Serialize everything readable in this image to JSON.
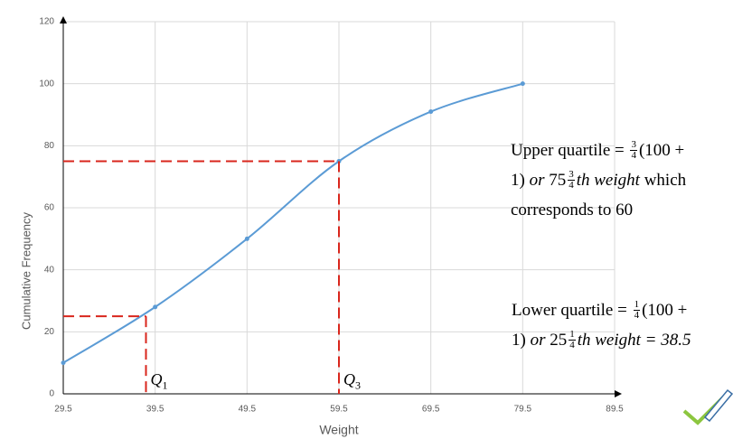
{
  "chart_data": {
    "type": "line",
    "x_label": "Weight",
    "y_label": "Cumulative Frequency",
    "x": [
      29.5,
      39.5,
      49.5,
      59.5,
      69.5,
      79.5
    ],
    "series": [
      {
        "color": "#5b9bd5",
        "values": [
          10,
          28,
          50,
          75,
          91,
          100
        ]
      }
    ],
    "xlim": [
      29.5,
      89.5
    ],
    "xticks": [
      29.5,
      39.5,
      49.5,
      59.5,
      69.5,
      79.5,
      89.5
    ],
    "ylim": [
      0,
      120
    ],
    "yticks": [
      0,
      20,
      40,
      60,
      80,
      100,
      120
    ],
    "grid": true,
    "reference_lines": [
      {
        "x": 59.5,
        "y": 75,
        "color": "#d9261c"
      },
      {
        "x": 38.5,
        "y": 25,
        "color": "#d9261c"
      }
    ],
    "markers": [
      {
        "text": "Q",
        "sub": "3",
        "x": 59.5
      },
      {
        "text": "Q",
        "sub": "1",
        "x": 38.5
      }
    ],
    "annotations": [
      {
        "lines": [
          [
            {
              "text": "Upper quartile = "
            },
            {
              "num": "3",
              "den": "4"
            },
            {
              "text": "(100 +"
            }
          ],
          [
            {
              "text": "1) "
            },
            {
              "text": "or",
              "style": "italic"
            },
            {
              "text": " 75"
            },
            {
              "num": "3",
              "den": "4"
            },
            {
              "text": "th weight",
              "style": "italic"
            },
            {
              "text": " which"
            }
          ],
          [
            {
              "text": "corresponds to 60"
            }
          ]
        ]
      },
      {
        "lines": [
          [
            {
              "text": "Lower quartile = "
            },
            {
              "num": "1",
              "den": "4"
            },
            {
              "text": "(100 +"
            }
          ],
          [
            {
              "text": "1) "
            },
            {
              "text": "or",
              "style": "italic"
            },
            {
              "text": " 25"
            },
            {
              "num": "1",
              "den": "4"
            },
            {
              "text": "th weight = 38.5",
              "style": "italic"
            }
          ]
        ]
      }
    ]
  }
}
